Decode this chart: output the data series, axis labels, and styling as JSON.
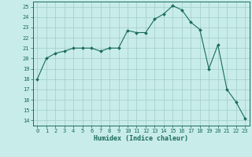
{
  "x": [
    0,
    1,
    2,
    3,
    4,
    5,
    6,
    7,
    8,
    9,
    10,
    11,
    12,
    13,
    14,
    15,
    16,
    17,
    18,
    19,
    20,
    21,
    22,
    23
  ],
  "y": [
    18,
    20,
    20.5,
    20.7,
    21,
    21,
    21,
    20.7,
    21,
    21,
    22.7,
    22.5,
    22.5,
    23.8,
    24.3,
    25.1,
    24.7,
    23.5,
    22.8,
    19,
    21.3,
    17,
    15.8,
    14.2
  ],
  "line_color": "#1a6b5a",
  "marker": "D",
  "marker_size": 2.0,
  "bg_color": "#c8ecea",
  "grid_color": "#a0ccca",
  "xlabel": "Humidex (Indice chaleur)",
  "ylim": [
    13.5,
    25.5
  ],
  "xlim": [
    -0.5,
    23.5
  ],
  "yticks": [
    14,
    15,
    16,
    17,
    18,
    19,
    20,
    21,
    22,
    23,
    24,
    25
  ],
  "xticks": [
    0,
    1,
    2,
    3,
    4,
    5,
    6,
    7,
    8,
    9,
    10,
    11,
    12,
    13,
    14,
    15,
    16,
    17,
    18,
    19,
    20,
    21,
    22,
    23
  ],
  "axis_color": "#1a6b5a",
  "tick_color": "#1a6b5a",
  "label_color": "#1a6b5a",
  "tick_labelsize": 5.0,
  "xlabel_fontsize": 6.0,
  "linewidth": 0.8
}
